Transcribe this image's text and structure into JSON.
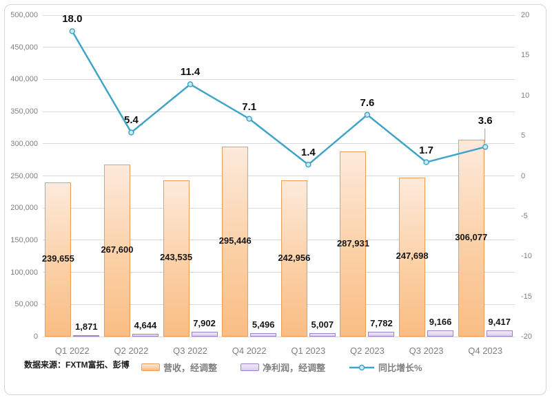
{
  "source_note": "数据来源：FXTM富拓、彭博",
  "colors": {
    "bar_revenue_border": "#ed9b55",
    "bar_revenue_fill_top": "#fdeadc",
    "bar_revenue_fill_bottom": "#fabd84",
    "bar_profit_border": "#9e80c5",
    "bar_profit_fill": "#e6d9f2",
    "line": "#3fa5c8",
    "marker_fill": "#cde9f4",
    "gridline": "#d9d9d9",
    "axis_text": "#808080",
    "leader_line": "#9e9e9e"
  },
  "chart_data": {
    "type": "combo",
    "title": "",
    "grid": true,
    "legend_position": "bottom",
    "categories": [
      "Q1 2022",
      "Q2 2022",
      "Q3 2022",
      "Q4 2022",
      "Q1 2023",
      "Q2 2023",
      "Q3 2023",
      "Q4 2023"
    ],
    "series": [
      {
        "name": "营收，经调整",
        "type": "bar",
        "axis": "left",
        "values": [
          239655,
          267600,
          243535,
          295446,
          242956,
          287931,
          247698,
          306077
        ],
        "labels": [
          "239,655",
          "267,600",
          "243,535",
          "295,446",
          "242,956",
          "287,931",
          "247,698",
          "306,077"
        ]
      },
      {
        "name": "净利润，经调整",
        "type": "bar",
        "axis": "left",
        "values": [
          1871,
          4644,
          7902,
          5496,
          5007,
          7782,
          9166,
          9417
        ],
        "labels": [
          "1,871",
          "4,644",
          "7,902",
          "5,496",
          "5,007",
          "7,782",
          "9,166",
          "9,417"
        ]
      },
      {
        "name": "同比增长%",
        "type": "line",
        "axis": "right",
        "values": [
          18.0,
          5.4,
          11.4,
          7.1,
          1.4,
          7.6,
          1.7,
          3.6
        ],
        "labels": [
          "18.0",
          "5.4",
          "11.4",
          "7.1",
          "1.4",
          "7.6",
          "1.7",
          "3.6"
        ]
      }
    ],
    "left_axis": {
      "min": 0,
      "max": 500000,
      "step": 50000,
      "tick_labels": [
        "500,000",
        "450,000",
        "400,000",
        "350,000",
        "300,000",
        "250,000",
        "200,000",
        "150,000",
        "100,000",
        "50,000",
        "0"
      ]
    },
    "right_axis": {
      "min": -20,
      "max": 20,
      "step": 5,
      "tick_labels": [
        "20",
        "15",
        "10",
        "5",
        "0",
        "-5",
        "-10",
        "-15",
        "-20"
      ]
    }
  }
}
